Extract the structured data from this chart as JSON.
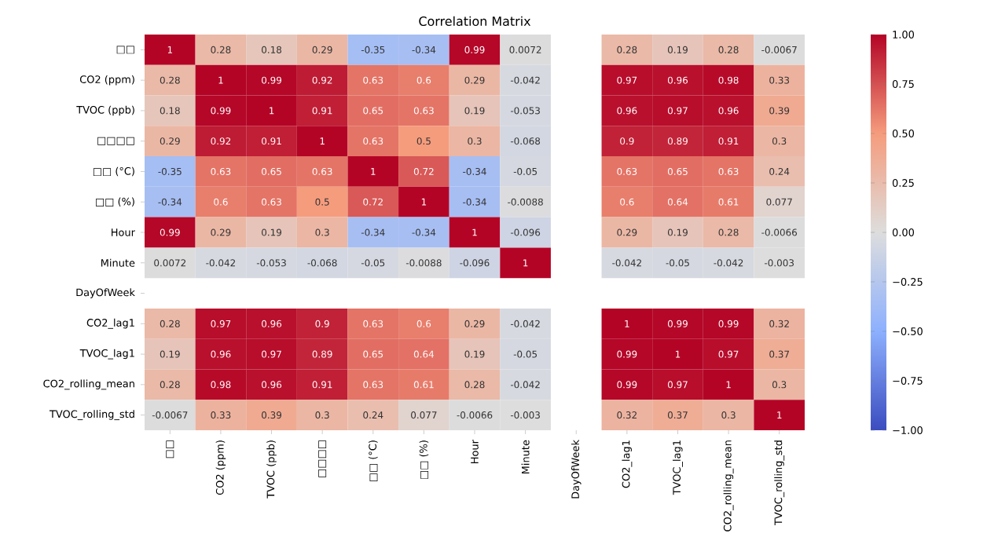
{
  "chart_data": {
    "type": "heatmap",
    "title": "Correlation Matrix",
    "categories": [
      "□□",
      "CO2 (ppm)",
      "TVOC (ppb)",
      "□□□□",
      "□□ (°C)",
      "□□ (%)",
      "Hour",
      "Minute",
      "DayOfWeek",
      "CO2_lag1",
      "TVOC_lag1",
      "CO2_rolling_mean",
      "TVOC_rolling_std"
    ],
    "y_categories": [
      "□□",
      "CO2 (ppm)",
      "TVOC (ppb)",
      "□□□□",
      "□□ (°C)",
      "□□ (%)",
      "Hour",
      "Minute",
      "DayOfWeek",
      "CO2_lag1",
      "TVOC_lag1",
      "CO2_rolling_mean",
      "TVOC_rolling_std"
    ],
    "cells": [
      [
        1,
        0.28,
        0.18,
        0.29,
        -0.35,
        -0.34,
        0.99,
        0.0072,
        null,
        0.28,
        0.19,
        0.28,
        -0.0067
      ],
      [
        0.28,
        1,
        0.99,
        0.92,
        0.63,
        0.6,
        0.29,
        -0.042,
        null,
        0.97,
        0.96,
        0.98,
        0.33
      ],
      [
        0.18,
        0.99,
        1,
        0.91,
        0.65,
        0.63,
        0.19,
        -0.053,
        null,
        0.96,
        0.97,
        0.96,
        0.39
      ],
      [
        0.29,
        0.92,
        0.91,
        1,
        0.63,
        0.5,
        0.3,
        -0.068,
        null,
        0.9,
        0.89,
        0.91,
        0.3
      ],
      [
        -0.35,
        0.63,
        0.65,
        0.63,
        1,
        0.72,
        -0.34,
        -0.05,
        null,
        0.63,
        0.65,
        0.63,
        0.24
      ],
      [
        -0.34,
        0.6,
        0.63,
        0.5,
        0.72,
        1,
        -0.34,
        -0.0088,
        null,
        0.6,
        0.64,
        0.61,
        0.077
      ],
      [
        0.99,
        0.29,
        0.19,
        0.3,
        -0.34,
        -0.34,
        1,
        -0.096,
        null,
        0.29,
        0.19,
        0.28,
        -0.0066
      ],
      [
        0.0072,
        -0.042,
        -0.053,
        -0.068,
        -0.05,
        -0.0088,
        -0.096,
        1,
        null,
        -0.042,
        -0.05,
        -0.042,
        -0.003
      ],
      [
        null,
        null,
        null,
        null,
        null,
        null,
        null,
        null,
        null,
        null,
        null,
        null,
        null
      ],
      [
        0.28,
        0.97,
        0.96,
        0.9,
        0.63,
        0.6,
        0.29,
        -0.042,
        null,
        1,
        0.99,
        0.99,
        0.32
      ],
      [
        0.19,
        0.96,
        0.97,
        0.89,
        0.65,
        0.64,
        0.19,
        -0.05,
        null,
        0.99,
        1,
        0.97,
        0.37
      ],
      [
        0.28,
        0.98,
        0.96,
        0.91,
        0.63,
        0.61,
        0.28,
        -0.042,
        null,
        0.99,
        0.97,
        1,
        0.3
      ],
      [
        -0.0067,
        0.33,
        0.39,
        0.3,
        0.24,
        0.077,
        -0.0066,
        -0.003,
        null,
        0.32,
        0.37,
        0.3,
        1
      ]
    ],
    "clim": [
      -1,
      1
    ],
    "cticks": [
      {
        "value": -1,
        "label": "−1.00"
      },
      {
        "value": -0.75,
        "label": "−0.75"
      },
      {
        "value": -0.5,
        "label": "−0.50"
      },
      {
        "value": -0.25,
        "label": "−0.25"
      },
      {
        "value": 0,
        "label": "0.00"
      },
      {
        "value": 0.25,
        "label": "0.25"
      },
      {
        "value": 0.5,
        "label": "0.50"
      },
      {
        "value": 0.75,
        "label": "0.75"
      },
      {
        "value": 1,
        "label": "1.00"
      }
    ],
    "data_labels": true
  }
}
